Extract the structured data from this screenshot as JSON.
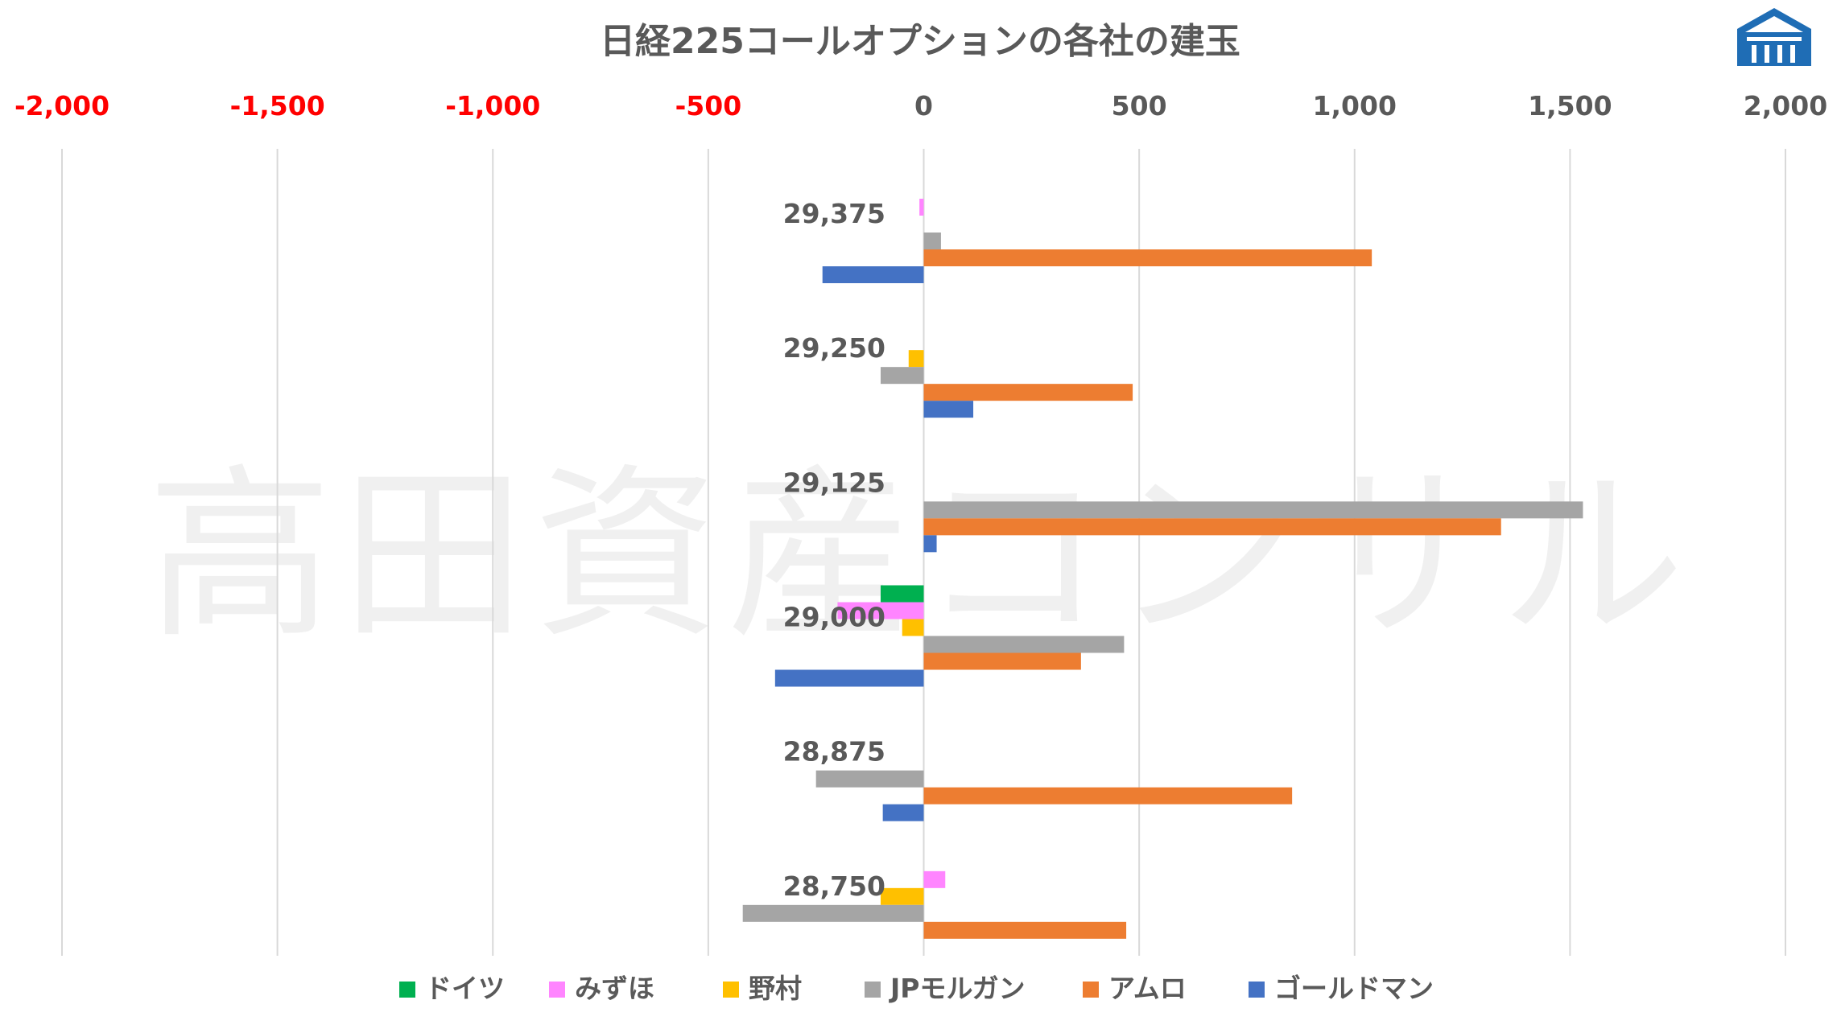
{
  "chart_data": {
    "type": "bar",
    "orientation": "horizontal",
    "title": "日経225コールオプションの各社の建玉",
    "watermark": "高田資産コンサル",
    "categories": [
      "29,375",
      "29,250",
      "29,125",
      "29,000",
      "28,875",
      "28,750"
    ],
    "xlim": [
      -2000,
      2000
    ],
    "xticks": [
      {
        "value": -2000,
        "label": "-2,000"
      },
      {
        "value": -1500,
        "label": "-1,500"
      },
      {
        "value": -1000,
        "label": "-1,000"
      },
      {
        "value": -500,
        "label": "-500"
      },
      {
        "value": 0,
        "label": "0"
      },
      {
        "value": 500,
        "label": "500"
      },
      {
        "value": 1000,
        "label": "1,000"
      },
      {
        "value": 1500,
        "label": "1,500"
      },
      {
        "value": 2000,
        "label": "2,000"
      }
    ],
    "negative_tick_color": "#ff0000",
    "positive_tick_color": "#595959",
    "grid": true,
    "legend_position": "bottom",
    "series": [
      {
        "name": "ドイツ",
        "color": "#00b050",
        "values": [
          0,
          0,
          0,
          -100,
          0,
          0
        ]
      },
      {
        "name": "みずほ",
        "color": "#ff85ff",
        "values": [
          -10,
          0,
          0,
          -200,
          0,
          50
        ]
      },
      {
        "name": "野村",
        "color": "#ffc000",
        "values": [
          0,
          -35,
          0,
          -50,
          0,
          -100
        ]
      },
      {
        "name": "JPモルガン",
        "color": "#a5a5a5",
        "values": [
          40,
          -100,
          1530,
          465,
          -250,
          -420
        ]
      },
      {
        "name": "アムロ",
        "color": "#ed7d31",
        "values": [
          1040,
          485,
          1340,
          365,
          855,
          470
        ]
      },
      {
        "name": "ゴールドマン",
        "color": "#4472c4",
        "values": [
          -235,
          115,
          30,
          -345,
          -95,
          0
        ]
      }
    ]
  },
  "logo": {
    "name": "company-logo",
    "color": "#1f6db5"
  }
}
